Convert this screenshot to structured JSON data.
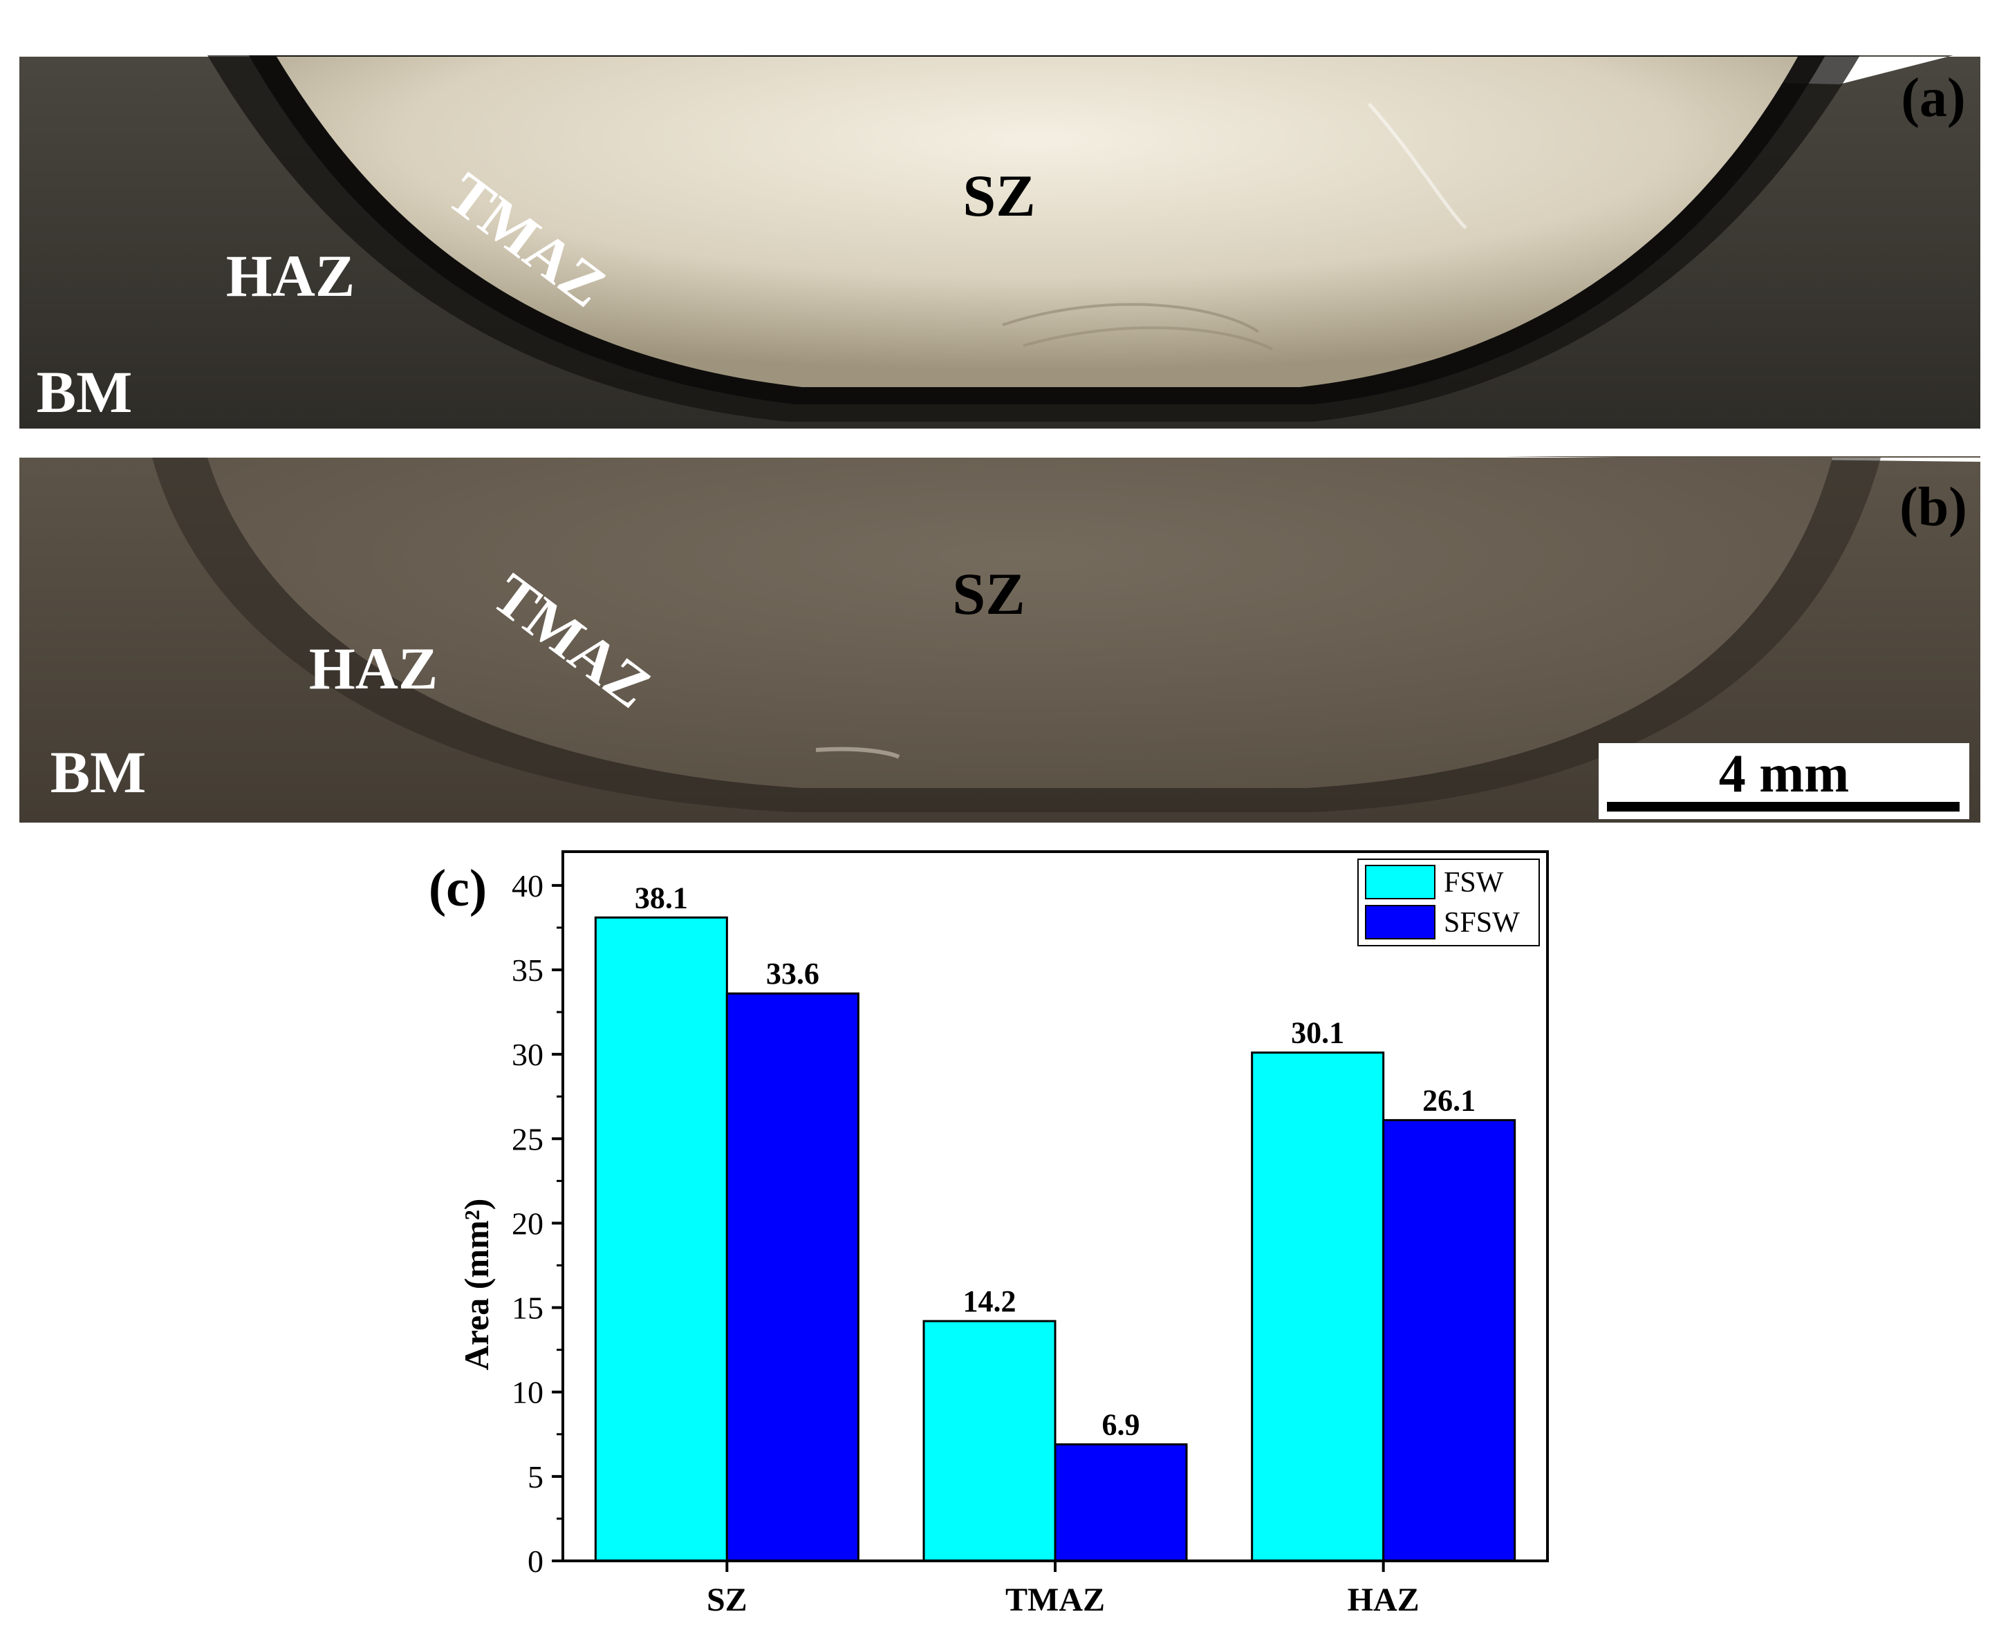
{
  "panels": {
    "a": {
      "tag": "(a)",
      "zone_labels": {
        "bm": "BM",
        "haz": "HAZ",
        "tmaz": "TMAZ",
        "sz": "SZ"
      }
    },
    "b": {
      "tag": "(b)",
      "zone_labels": {
        "bm": "BM",
        "haz": "HAZ",
        "tmaz": "TMAZ",
        "sz": "SZ"
      },
      "scale_bar_label": "4 mm"
    },
    "c": {
      "tag": "(c)"
    }
  },
  "colors": {
    "fsw": "#00ffff",
    "sfsw": "#0000ff"
  },
  "chart_data": {
    "type": "bar",
    "categories": [
      "SZ",
      "TMAZ",
      "HAZ"
    ],
    "series": [
      {
        "name": "FSW",
        "values": [
          38.1,
          14.2,
          30.1
        ],
        "labels": [
          "38.1",
          "14.2",
          "30.1"
        ]
      },
      {
        "name": "SFSW",
        "values": [
          33.6,
          6.9,
          26.1
        ],
        "labels": [
          "33.6",
          "6.9",
          "26.1"
        ]
      }
    ],
    "title": "",
    "xlabel": "",
    "ylabel": "Area (mm²)",
    "ylim": [
      0,
      42
    ],
    "yticks": [
      0,
      5,
      10,
      15,
      20,
      25,
      30,
      35,
      40
    ],
    "legend_position": "top-right",
    "grid": false
  }
}
